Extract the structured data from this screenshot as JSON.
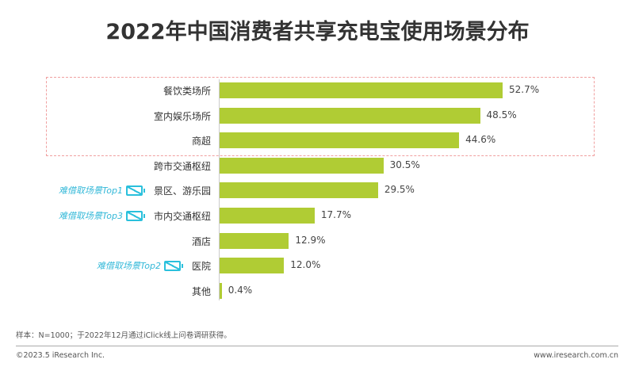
{
  "chart_data": {
    "type": "bar",
    "orientation": "horizontal",
    "title": "2022年中国消费者共享充电宝使用场景分布",
    "categories": [
      "餐饮类场所",
      "室内娱乐场所",
      "商超",
      "跨市交通枢纽",
      "景区、游乐园",
      "市内交通枢纽",
      "酒店",
      "医院",
      "其他"
    ],
    "values": [
      52.7,
      48.5,
      44.6,
      30.5,
      29.5,
      17.7,
      12.9,
      12.0,
      0.4
    ],
    "labels": [
      "52.7%",
      "48.5%",
      "44.6%",
      "30.5%",
      "29.5%",
      "17.7%",
      "12.9%",
      "12.0%",
      "0.4%"
    ],
    "bar_color": "#b0cc34",
    "highlight": "top 3 categories boxed with red dashed outline",
    "annotations": [
      {
        "category": "景区、游乐园",
        "text": "难借取场景Top1"
      },
      {
        "category": "市内交通枢纽",
        "text": "难借取场景Top3"
      },
      {
        "category": "医院",
        "text": "难借取场景Top2"
      }
    ],
    "annotation_color": "#33b8d8"
  },
  "footer": {
    "note": "样本：N=1000；于2022年12月通过iClick线上问卷调研获得。",
    "copyright": "©2023.5 iResearch Inc.",
    "site": "www.iresearch.com.cn"
  }
}
